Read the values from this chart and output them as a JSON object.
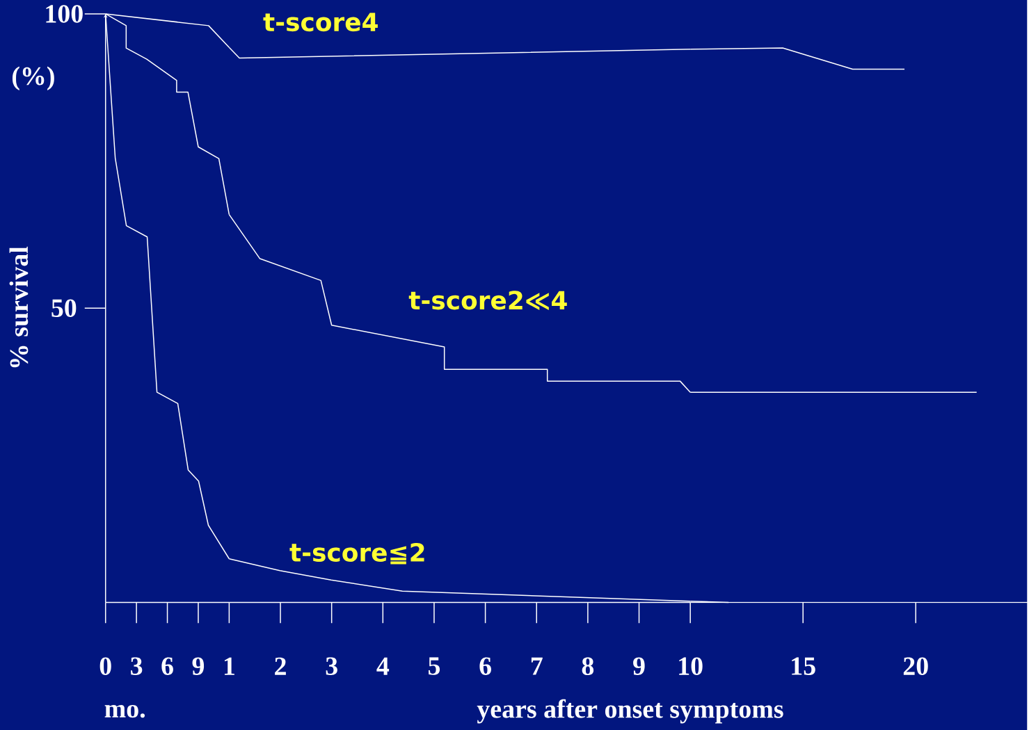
{
  "chart_data": [
    {
      "type": "line",
      "ylabel": "% survival",
      "annotations": [
        "(%)",
        "mo."
      ],
      "xlim": [
        0,
        12
      ],
      "ylim": [
        0,
        100
      ],
      "xticks": [
        0,
        3,
        6,
        9
      ],
      "yticks": [
        50,
        100
      ],
      "series": [
        {
          "color": "#ffffff",
          "x": [
            0,
            10.0,
            12
          ],
          "values": [
            100,
            98.0,
            94.3
          ]
        },
        {
          "color": "#ffffff",
          "x": [
            0,
            2.0,
            2.0,
            4.0,
            6.9,
            6.9,
            8.0,
            9.0,
            11.0,
            12
          ],
          "values": [
            100,
            98.0,
            94.2,
            92.3,
            88.7,
            86.7,
            86.7,
            77.4,
            75.4,
            65.9
          ]
        },
        {
          "color": "#ffffff",
          "x": [
            0,
            0.94,
            2.02,
            4.04,
            4.99,
            7.01,
            8.02,
            9.03,
            9.98,
            12
          ],
          "values": [
            100,
            75.5,
            64.0,
            62.1,
            35.7,
            33.8,
            22.5,
            20.6,
            13.1,
            7.4
          ]
        }
      ]
    },
    {
      "type": "line",
      "xlabel": "years after onset symptoms",
      "tick_labels": "x",
      "xlim": [
        1,
        10
      ],
      "ylim": [
        0,
        100
      ],
      "xticks": [
        1,
        2,
        3,
        4,
        5,
        6,
        7,
        8,
        9,
        10
      ],
      "series": [
        {
          "name": "t-score4",
          "color": "#ffffff",
          "x": [
            1,
            1.2,
            10
          ],
          "values": [
            94.3,
            92.5,
            94.0
          ]
        },
        {
          "name": "t-score2≪4",
          "color": "#ffffff",
          "x": [
            1,
            1.6,
            2.79,
            3.0,
            5.2,
            5.2,
            7.21,
            7.21,
            9.8,
            10
          ],
          "values": [
            65.9,
            58.4,
            54.7,
            47.1,
            43.4,
            39.6,
            39.6,
            37.6,
            37.6,
            35.7
          ]
        },
        {
          "name": "t-score≦2",
          "color": "#ffffff",
          "x": [
            1,
            1.99,
            2.99,
            4.38,
            10
          ],
          "values": [
            7.4,
            5.4,
            3.8,
            1.9,
            0.2
          ]
        }
      ]
    },
    {
      "type": "line",
      "tick_labels": "x",
      "xlim": [
        10,
        25
      ],
      "ylim": [
        0,
        100
      ],
      "xticks": [
        15,
        20
      ],
      "series": [
        {
          "color": "#ffffff",
          "x": [
            10,
            14.1,
            17.2,
            19.5
          ],
          "values": [
            94.0,
            94.2,
            90.6,
            90.6
          ]
        },
        {
          "color": "#ffffff",
          "x": [
            10,
            22.7
          ],
          "values": [
            35.7,
            35.7
          ]
        },
        {
          "color": "#ffffff",
          "x": [
            10,
            11.7
          ],
          "values": [
            0.2,
            0
          ]
        }
      ]
    }
  ]
}
